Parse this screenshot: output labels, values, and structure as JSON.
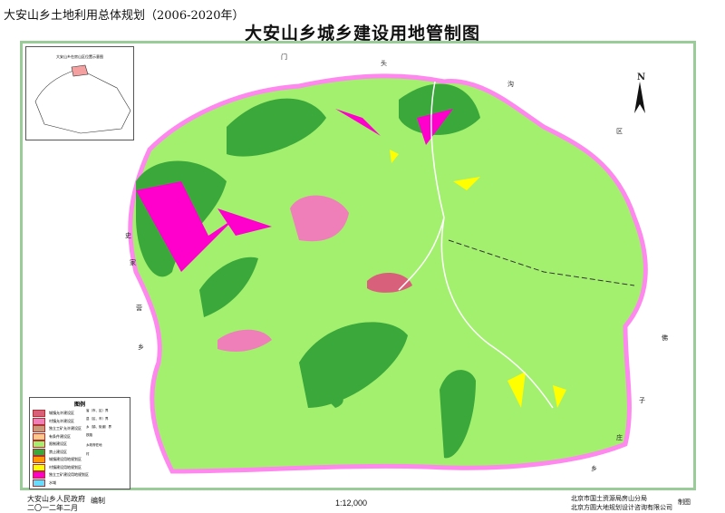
{
  "header": {
    "series_title": "大安山乡土地利用总体规划（2006-2020年）",
    "map_title": "大安山乡城乡建设用地管制图"
  },
  "inset": {
    "title": "大安山乡在房山区位置示意图"
  },
  "legend": {
    "title": "图例",
    "items": [
      {
        "label": "城镇允许建设区",
        "color": "#d9607a"
      },
      {
        "label": "村镇允许建设区",
        "color": "#ef7fb8"
      },
      {
        "label": "独立工矿允许建设区",
        "color": "#c89a7a"
      },
      {
        "label": "有条件建设区",
        "color": "#ffc98a"
      },
      {
        "label": "限制建设区",
        "color": "#a3f06f"
      },
      {
        "label": "禁止建设区",
        "color": "#3aa83a"
      },
      {
        "label": "城镇建设用地规划区",
        "color": "#ff9900"
      },
      {
        "label": "村镇建设用地规划区",
        "color": "#ffff00"
      },
      {
        "label": "独立工矿建设用地规划区",
        "color": "#ff00cc"
      },
      {
        "label": "水域",
        "color": "#66ddff"
      }
    ],
    "lines": [
      {
        "label": "省（市、区）界"
      },
      {
        "label": "县（区、市）界"
      },
      {
        "label": "乡（镇、街道）界"
      },
      {
        "label": "铁路"
      },
      {
        "label": "乡政府驻地"
      },
      {
        "label": "村"
      }
    ]
  },
  "neighbors": {
    "north": [
      "门",
      "头",
      "沟"
    ],
    "northeast": "区",
    "west": [
      "史",
      "家",
      "营",
      "乡"
    ],
    "east": [
      "佛",
      "子",
      "庄",
      "乡"
    ]
  },
  "north_arrow": "N",
  "footer": {
    "compiler": "大安山乡人民政府",
    "compile_label": "编制",
    "date": "二〇一二年二月",
    "scale": "1:12,000",
    "org1": "北京市国土资源局房山分局",
    "org2": "北京方圆大地规划设计咨询有限公司",
    "draw_label": "制图"
  }
}
